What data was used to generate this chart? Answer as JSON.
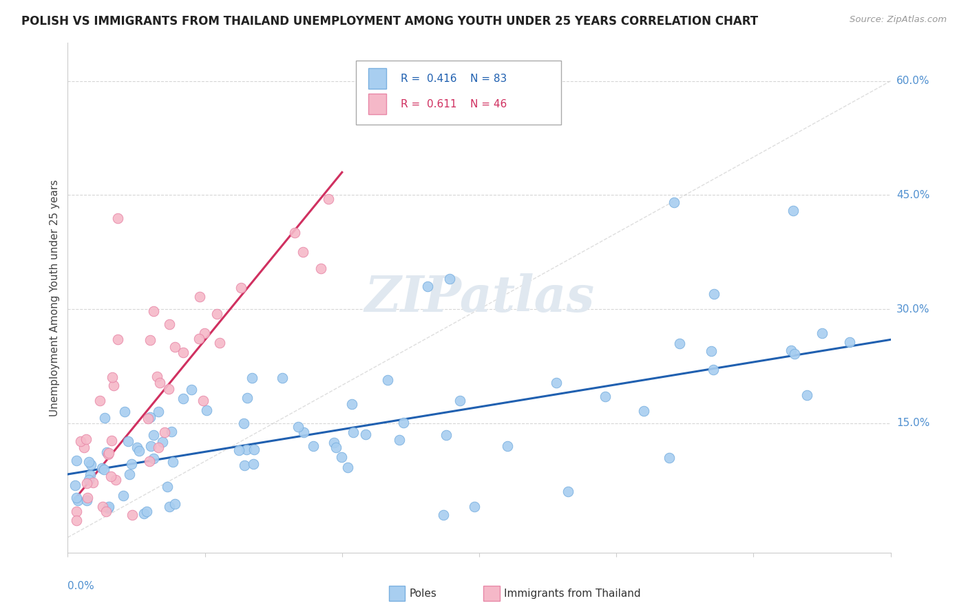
{
  "title": "POLISH VS IMMIGRANTS FROM THAILAND UNEMPLOYMENT AMONG YOUTH UNDER 25 YEARS CORRELATION CHART",
  "source": "Source: ZipAtlas.com",
  "ylabel": "Unemployment Among Youth under 25 years",
  "ytick_labels": [
    "15.0%",
    "30.0%",
    "45.0%",
    "60.0%"
  ],
  "ytick_values": [
    0.15,
    0.3,
    0.45,
    0.6
  ],
  "legend_label1": "Poles",
  "legend_label2": "Immigrants from Thailand",
  "R_poles": 0.416,
  "N_poles": 83,
  "R_thailand": 0.611,
  "N_thailand": 46,
  "color_poles_fill": "#a8cef0",
  "color_poles_edge": "#7ab0e0",
  "color_thailand_fill": "#f5b8c8",
  "color_thailand_edge": "#e888a8",
  "color_trend_poles": "#2060b0",
  "color_trend_thailand": "#d03060",
  "color_diagonal": "#c8c8c8",
  "color_ytick": "#5090d0",
  "background_color": "#ffffff",
  "xmin": 0.0,
  "xmax": 0.6,
  "ymin": -0.02,
  "ymax": 0.65,
  "watermark_text": "ZIPatlas",
  "watermark_color": "#e0e8f0"
}
